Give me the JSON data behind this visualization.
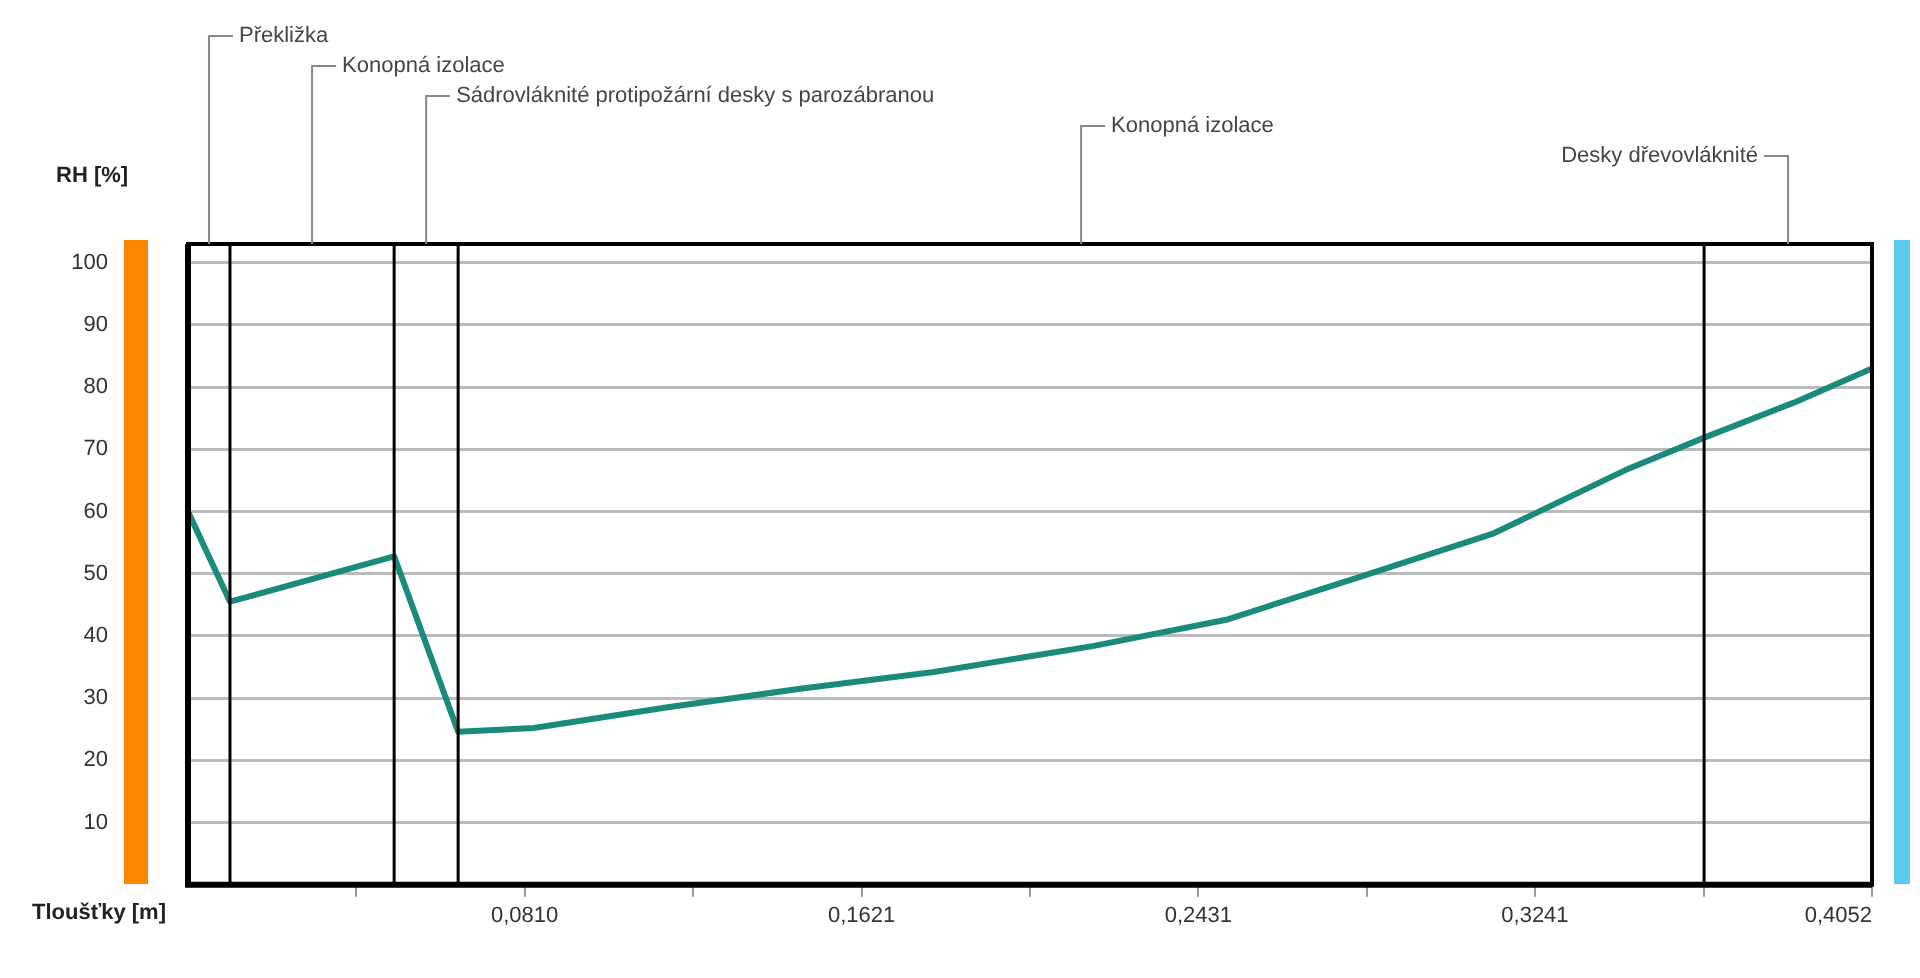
{
  "chart_data": {
    "type": "line",
    "xlabel": "Tloušťky [m]",
    "ylabel": "RH [%]",
    "x": [
      0,
      0.0101,
      0.0496,
      0.065,
      0.0832,
      0.115,
      0.1473,
      0.1795,
      0.218,
      0.2498,
      0.282,
      0.3142,
      0.346,
      0.3653,
      0.3864,
      0.4052
    ],
    "series": [
      {
        "color": "#1a8a7a",
        "values": [
          60,
          45.5,
          52.8,
          24.6,
          25.2,
          28.5,
          31.5,
          34.2,
          38.4,
          42.6,
          49.5,
          56.5,
          66.7,
          72,
          77.5,
          83
        ]
      }
    ],
    "xlim": [
      0,
      0.4052
    ],
    "xticks": [
      {
        "value": 0.0405,
        "label": null
      },
      {
        "value": 0.081,
        "label": "0,0810"
      },
      {
        "value": 0.1216,
        "label": null
      },
      {
        "value": 0.1621,
        "label": "0,1621"
      },
      {
        "value": 0.2026,
        "label": null
      },
      {
        "value": 0.2431,
        "label": "0,2431"
      },
      {
        "value": 0.2836,
        "label": null
      },
      {
        "value": 0.3241,
        "label": "0,3241"
      },
      {
        "value": 0.3647,
        "label": null
      },
      {
        "value": 0.4052,
        "label": "0,4052"
      }
    ],
    "ylim": [
      0,
      103
    ],
    "yticks": [
      10,
      20,
      30,
      40,
      50,
      60,
      70,
      80,
      90,
      100
    ],
    "grid": "y",
    "legend": false,
    "marker": "none",
    "line_style": "solid",
    "ref_lines": [
      {
        "axis": "x",
        "value": 0.0101,
        "color": "#000000"
      },
      {
        "axis": "x",
        "value": 0.0496,
        "color": "#000000"
      },
      {
        "axis": "x",
        "value": 0.065,
        "color": "#000000"
      },
      {
        "axis": "x",
        "value": 0.3648,
        "color": "#000000"
      }
    ],
    "annotations": [
      "Překližka",
      "Konopná izolace",
      "Sádrovláknité protipožární desky s parozábranou",
      "Konopná izolace",
      "Desky dřevovláknité"
    ]
  }
}
